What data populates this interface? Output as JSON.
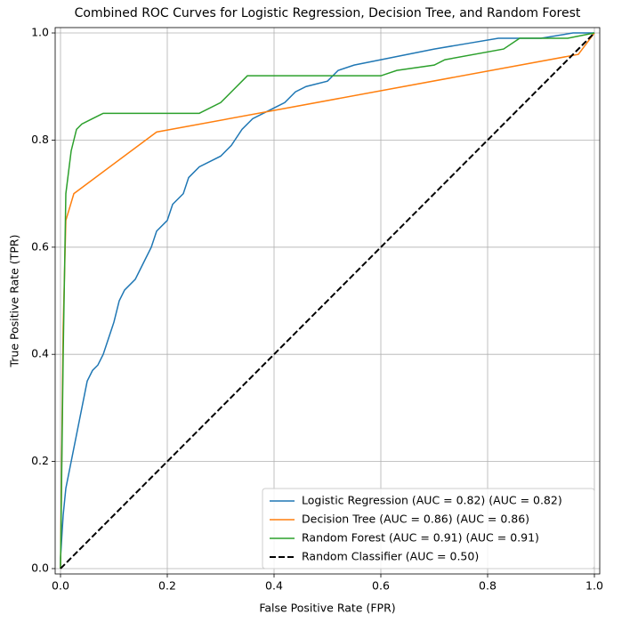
{
  "chart_data": {
    "type": "line",
    "title": "Combined ROC Curves for Logistic Regression, Decision Tree, and Random Forest",
    "x_label": "False Positive Rate (FPR)",
    "y_label": "True Positive Rate (TPR)",
    "xlim": [
      -0.01,
      1.01
    ],
    "ylim": [
      -0.01,
      1.01
    ],
    "xticks": [
      {
        "value": 0,
        "label": "0.0"
      },
      0.2,
      0.4,
      0.6,
      0.8,
      {
        "value": 1,
        "label": "1.0"
      }
    ],
    "yticks": [
      {
        "value": 0,
        "label": "0.0"
      },
      0.2,
      0.4,
      0.6,
      0.8,
      {
        "value": 1,
        "label": "1.0"
      }
    ],
    "grid": true,
    "legend": "lower right",
    "series": [
      {
        "name": "Logistic Regression (AUC = 0.82) (AUC = 0.82)",
        "color": "#1f77b4",
        "linestyle": "solid",
        "x": [
          0,
          0,
          0.005,
          0.01,
          0.02,
          0.03,
          0.04,
          0.05,
          0.06,
          0.07,
          0.08,
          0.09,
          0.1,
          0.11,
          0.12,
          0.14,
          0.15,
          0.17,
          0.18,
          0.2,
          0.21,
          0.23,
          0.24,
          0.26,
          0.3,
          0.32,
          0.34,
          0.36,
          0.38,
          0.4,
          0.42,
          0.44,
          0.46,
          0.5,
          0.52,
          0.55,
          0.6,
          0.65,
          0.7,
          0.76,
          0.82,
          0.9,
          0.96,
          1
        ],
        "values": [
          0,
          0.02,
          0.1,
          0.15,
          0.2,
          0.25,
          0.3,
          0.35,
          0.37,
          0.38,
          0.4,
          0.43,
          0.46,
          0.5,
          0.52,
          0.54,
          0.56,
          0.6,
          0.63,
          0.65,
          0.68,
          0.7,
          0.73,
          0.75,
          0.77,
          0.79,
          0.82,
          0.84,
          0.85,
          0.86,
          0.87,
          0.89,
          0.9,
          0.91,
          0.93,
          0.94,
          0.95,
          0.96,
          0.97,
          0.98,
          0.99,
          0.99,
          1,
          1
        ]
      },
      {
        "name": "Decision Tree (AUC = 0.86) (AUC = 0.86)",
        "color": "#ff7f0e",
        "linestyle": "solid",
        "x": [
          0,
          0.005,
          0.01,
          0.025,
          0.18,
          0.97,
          1
        ],
        "values": [
          0,
          0.45,
          0.65,
          0.7,
          0.815,
          0.96,
          1
        ]
      },
      {
        "name": "Random Forest (AUC = 0.91) (AUC = 0.91)",
        "color": "#2ca02c",
        "linestyle": "solid",
        "x": [
          0,
          0.005,
          0.01,
          0.02,
          0.03,
          0.04,
          0.06,
          0.08,
          0.26,
          0.3,
          0.32,
          0.35,
          0.6,
          0.63,
          0.7,
          0.72,
          0.83,
          0.86,
          0.95,
          1
        ],
        "values": [
          0,
          0.4,
          0.7,
          0.78,
          0.82,
          0.83,
          0.84,
          0.85,
          0.85,
          0.87,
          0.89,
          0.92,
          0.92,
          0.93,
          0.94,
          0.95,
          0.97,
          0.99,
          0.99,
          1
        ]
      },
      {
        "name": "Random Classifier (AUC = 0.50)",
        "color": "#000000",
        "linestyle": "dashed",
        "x": [
          0,
          1
        ],
        "values": [
          0,
          1
        ]
      }
    ]
  }
}
